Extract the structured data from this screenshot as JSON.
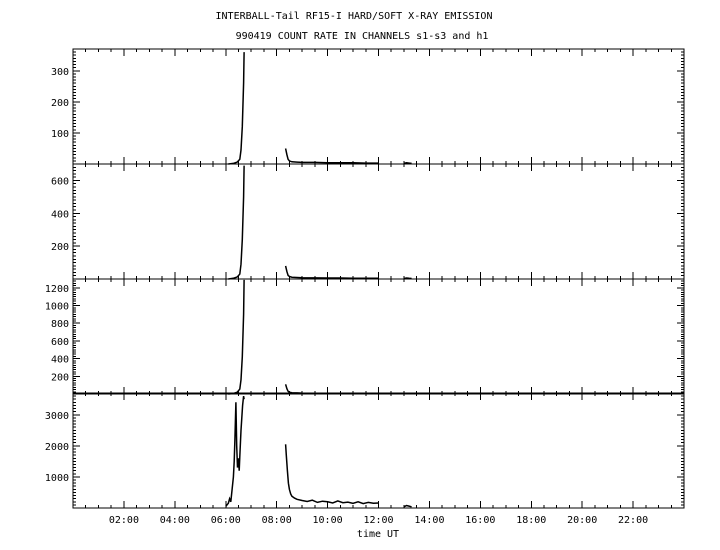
{
  "chart_data": {
    "type": "line",
    "title": "INTERBALL-Tail RF15-I HARD/SOFT X-RAY EMISSION",
    "subtitle": "990419  COUNT RATE IN CHANNELS s1-s3 and h1",
    "xlabel": "time UT",
    "xlim": [
      0,
      24
    ],
    "x_ticks": [
      2,
      4,
      6,
      8,
      10,
      12,
      14,
      16,
      18,
      20,
      22
    ],
    "x_tick_labels": [
      "02:00",
      "04:00",
      "06:00",
      "08:00",
      "10:00",
      "12:00",
      "14:00",
      "16:00",
      "18:00",
      "20:00",
      "22:00"
    ],
    "grid": false,
    "panels": [
      {
        "ylim": [
          0,
          370
        ],
        "y_ticks": [
          100,
          200,
          300
        ],
        "y_tick_labels": [
          "100",
          "200",
          "300"
        ],
        "series": [
          {
            "x": [
              6.1,
              6.3,
              6.45,
              6.55,
              6.6,
              6.65,
              6.7,
              6.72
            ],
            "y": [
              0,
              2,
              6,
              15,
              45,
              120,
              260,
              360
            ]
          },
          {
            "x": [
              8.35,
              8.4,
              8.45,
              8.5,
              8.6,
              8.8,
              9.0,
              9.5,
              10.0,
              10.5,
              11.0,
              11.5,
              12.0
            ],
            "y": [
              50,
              30,
              15,
              10,
              7,
              6,
              5,
              5,
              4,
              4,
              4,
              3,
              3
            ]
          },
          {
            "x": [
              13.0,
              13.1,
              13.2,
              13.3
            ],
            "y": [
              2,
              4,
              3,
              2
            ]
          }
        ]
      },
      {
        "ylim": [
          0,
          700
        ],
        "y_ticks": [
          200,
          400,
          600
        ],
        "y_tick_labels": [
          "200",
          "400",
          "600"
        ],
        "series": [
          {
            "x": [
              6.1,
              6.3,
              6.45,
              6.55,
              6.6,
              6.65,
              6.7,
              6.72
            ],
            "y": [
              0,
              4,
              12,
              30,
              90,
              240,
              500,
              690
            ]
          },
          {
            "x": [
              8.35,
              8.4,
              8.45,
              8.5,
              8.6,
              8.8,
              9.0,
              9.5,
              10.0,
              10.5,
              11.0,
              11.5,
              12.0
            ],
            "y": [
              80,
              45,
              22,
              15,
              11,
              9,
              8,
              7,
              6,
              6,
              5,
              5,
              4
            ]
          },
          {
            "x": [
              13.0,
              13.1,
              13.2,
              13.3
            ],
            "y": [
              3,
              6,
              4,
              3
            ]
          }
        ]
      },
      {
        "ylim": [
          0,
          1300
        ],
        "y_ticks": [
          200,
          400,
          600,
          800,
          1000,
          1200
        ],
        "y_tick_labels": [
          "200",
          "400",
          "600",
          "800",
          "1000",
          "1200"
        ],
        "series": [
          {
            "x": [
              6.1,
              6.3,
              6.45,
              6.55,
              6.6,
              6.65,
              6.7,
              6.72
            ],
            "y": [
              0,
              6,
              20,
              55,
              160,
              420,
              900,
              1290
            ]
          },
          {
            "x": [
              8.35,
              8.4,
              8.45,
              8.5,
              8.6,
              8.8,
              9.0,
              9.5,
              10.0,
              10.5,
              11.0,
              11.5,
              12.0
            ],
            "y": [
              110,
              60,
              30,
              20,
              15,
              12,
              10,
              9,
              8,
              8,
              7,
              6,
              6
            ]
          },
          {
            "x": [
              13.0,
              13.1,
              13.2,
              13.3
            ],
            "y": [
              4,
              8,
              5,
              4
            ]
          }
        ]
      },
      {
        "ylim": [
          0,
          3700
        ],
        "y_ticks": [
          1000,
          2000,
          3000
        ],
        "y_tick_labels": [
          "1000",
          "2000",
          "3000"
        ],
        "series": [
          {
            "x": [
              6.0,
              6.1,
              6.15,
              6.2,
              6.25,
              6.3,
              6.33,
              6.36,
              6.4,
              6.43,
              6.46,
              6.5,
              6.53,
              6.56,
              6.6,
              6.63,
              6.66,
              6.7,
              6.72
            ],
            "y": [
              50,
              150,
              300,
              200,
              600,
              1000,
              1500,
              2200,
              3400,
              2000,
              1300,
              1600,
              1200,
              1800,
              2500,
              2900,
              3300,
              3600,
              3500
            ]
          },
          {
            "x": [
              8.35,
              8.38,
              8.42,
              8.46,
              8.5,
              8.55,
              8.6,
              8.7,
              8.8,
              9.0,
              9.2,
              9.4,
              9.6,
              9.8,
              10.0,
              10.2,
              10.4,
              10.6,
              10.8,
              11.0,
              11.2,
              11.4,
              11.6,
              11.8,
              12.0
            ],
            "y": [
              2050,
              1700,
              1200,
              800,
              600,
              450,
              380,
              320,
              280,
              240,
              210,
              250,
              180,
              220,
              200,
              160,
              230,
              170,
              190,
              150,
              200,
              140,
              180,
              150,
              160
            ]
          },
          {
            "x": [
              13.0,
              13.1,
              13.2,
              13.3
            ],
            "y": [
              40,
              80,
              60,
              40
            ]
          }
        ]
      }
    ]
  }
}
